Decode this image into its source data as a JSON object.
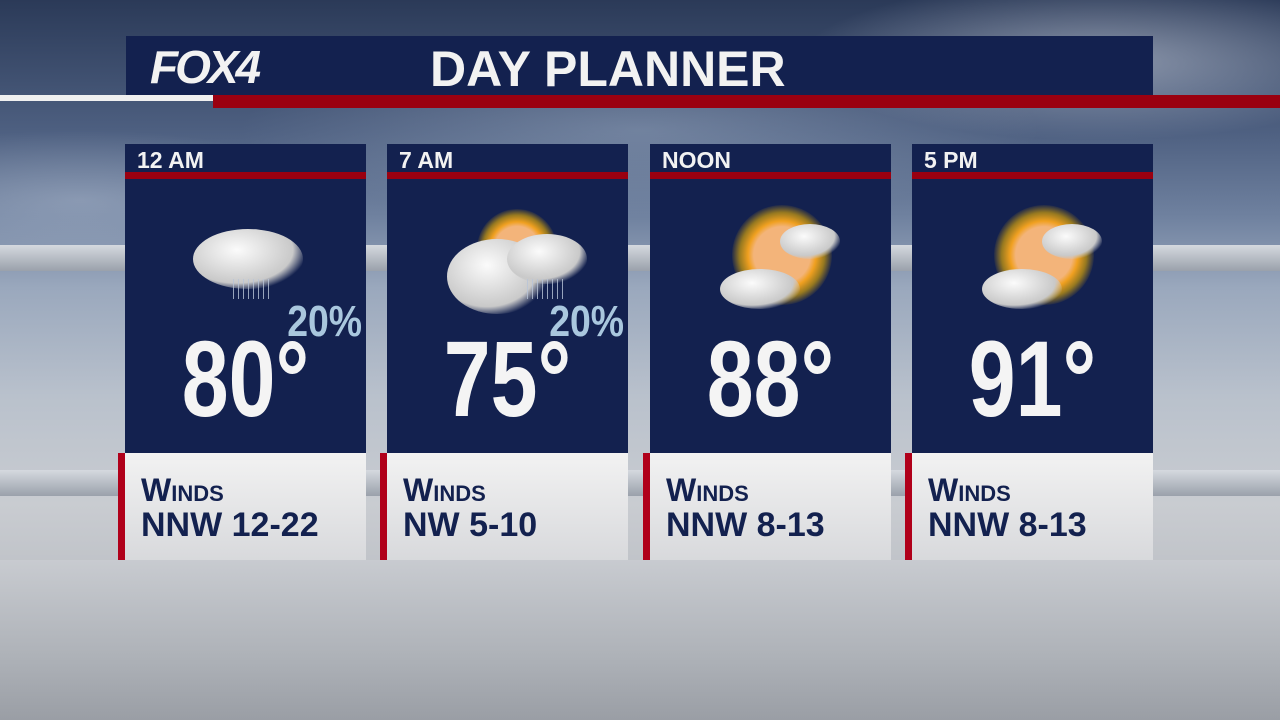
{
  "header": {
    "logo": "FOX4",
    "title": "DAY PLANNER"
  },
  "colors": {
    "navy": "#13214f",
    "red": "#9a0010",
    "precip": "#a9c7de"
  },
  "periods": [
    {
      "time": "12 AM",
      "icon": "rain-cloud-icon",
      "precip": "20%",
      "temp": "80°",
      "winds_label": "Winds",
      "winds": "NNW 12-22"
    },
    {
      "time": "7 AM",
      "icon": "partly-cloudy-rain-icon",
      "precip": "20%",
      "temp": "75°",
      "winds_label": "Winds",
      "winds": "NW 5-10"
    },
    {
      "time": "NOON",
      "icon": "partly-sunny-icon",
      "temp": "88°",
      "winds_label": "Winds",
      "winds": "NNW 8-13"
    },
    {
      "time": "5 PM",
      "icon": "partly-sunny-icon",
      "temp": "91°",
      "winds_label": "Winds",
      "winds": "NNW 8-13"
    }
  ]
}
